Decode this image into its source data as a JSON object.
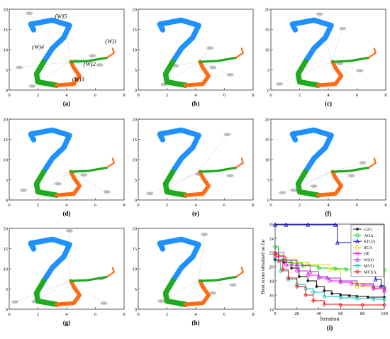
{
  "panel_tick_labels": {
    "x": [
      "0",
      "2",
      "4",
      "6",
      "8"
    ],
    "y": [
      "0",
      "5",
      "10",
      "15",
      "20"
    ]
  },
  "panels": [
    {
      "label": "(a)",
      "annotations": [
        "(W)5",
        "(W)1",
        "(W)4",
        "(W)2",
        "(W)3"
      ]
    },
    {
      "label": "(b)"
    },
    {
      "label": "(c)"
    },
    {
      "label": "(d)"
    },
    {
      "label": "(e)"
    },
    {
      "label": "(f)"
    },
    {
      "label": "(g)"
    },
    {
      "label": "(h)"
    },
    {
      "label": "(i)"
    }
  ],
  "colors": {
    "segment_5": "#1e90ff",
    "segment_4": "#1faa1f",
    "segment_1": "#ff6a13",
    "segment_2": "#ff6a13",
    "segment_3": "#ff6a13",
    "obstacle": "#bdbdbd"
  },
  "chart_data": {
    "type": "line",
    "panel": "(i)",
    "xlabel": "Iteration",
    "ylabel": "Best score obtained so far",
    "xlim": [
      0,
      100
    ],
    "ylim": [
      14,
      26
    ],
    "x_ticks": [
      "0",
      "20",
      "40",
      "60",
      "80",
      "100"
    ],
    "y_ticks": [
      "14",
      "16",
      "18",
      "20",
      "22",
      "24",
      "26"
    ],
    "legend_position": "top-right",
    "series": [
      {
        "name": "GJO",
        "color": "#000000",
        "marker": "star",
        "x": [
          0,
          8,
          15,
          22,
          30,
          38,
          45,
          52,
          60,
          68,
          75,
          85,
          100
        ],
        "y": [
          21.0,
          20.6,
          19.8,
          18.6,
          18.0,
          17.2,
          16.6,
          16.2,
          16.0,
          15.9,
          15.8,
          15.7,
          15.7
        ]
      },
      {
        "name": "AOA",
        "color": "#00cc00",
        "marker": "circle",
        "x": [
          0,
          3,
          8,
          15,
          25,
          40,
          55,
          65,
          75,
          90,
          100
        ],
        "y": [
          22.8,
          21.6,
          21.0,
          20.5,
          20.1,
          19.8,
          19.7,
          19.6,
          19.5,
          19.5,
          19.5
        ]
      },
      {
        "name": "STOA",
        "color": "#0000cc",
        "marker": "triangle",
        "x": [
          0,
          10,
          30,
          55,
          57,
          72,
          78,
          85,
          92,
          97,
          100
        ],
        "y": [
          25.9,
          25.9,
          25.9,
          25.9,
          23.4,
          23.4,
          21.0,
          19.5,
          18.2,
          17.3,
          17.1
        ]
      },
      {
        "name": "SCA",
        "color": "#dddd00",
        "marker": "square",
        "x": [
          0,
          10,
          20,
          30,
          50,
          60,
          75,
          90,
          100
        ],
        "y": [
          21.5,
          21.0,
          20.6,
          20.3,
          19.6,
          17.8,
          17.2,
          17.0,
          17.0
        ]
      },
      {
        "name": "DE",
        "color": "#ff00ff",
        "marker": "circle",
        "x": [
          0,
          10,
          20,
          30,
          40,
          50,
          60,
          70,
          80,
          90,
          100
        ],
        "y": [
          21.4,
          20.2,
          19.4,
          18.8,
          18.4,
          18.0,
          17.8,
          17.6,
          17.4,
          16.9,
          16.5
        ]
      },
      {
        "name": "WSO",
        "color": "#9933cc",
        "marker": "triangle",
        "x": [
          0,
          8,
          20,
          32,
          40,
          48,
          60,
          75,
          90,
          100
        ],
        "y": [
          22.0,
          20.9,
          20.2,
          19.3,
          18.6,
          18.4,
          18.0,
          17.6,
          17.2,
          16.8
        ]
      },
      {
        "name": "MVO",
        "color": "#00bbbb",
        "marker": "circle",
        "x": [
          0,
          5,
          12,
          20,
          28,
          35,
          45,
          60,
          75,
          90,
          100
        ],
        "y": [
          21.0,
          19.4,
          18.2,
          17.5,
          16.9,
          16.4,
          15.8,
          15.6,
          15.5,
          15.4,
          15.4
        ]
      },
      {
        "name": "MCSA",
        "color": "#ee0000",
        "marker": "diamond",
        "x": [
          0,
          3,
          7,
          12,
          20,
          28,
          35,
          45,
          60,
          80,
          100
        ],
        "y": [
          21.8,
          20.8,
          19.6,
          18.4,
          17.2,
          16.0,
          15.2,
          14.7,
          14.6,
          14.6,
          14.6
        ]
      }
    ]
  }
}
